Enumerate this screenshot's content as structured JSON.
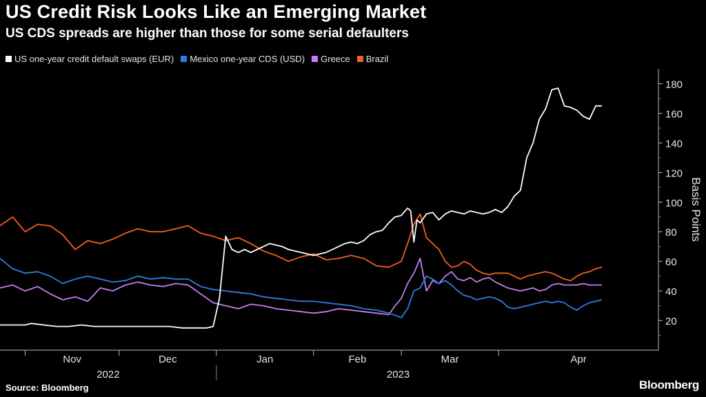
{
  "title": "US Credit Risk Looks Like an Emerging Market",
  "subtitle": "US CDS spreads are higher than those for some serial defaulters",
  "source": "Source: Bloomberg",
  "brand": "Bloomberg",
  "chart_data": {
    "type": "line",
    "ylabel": "Basis Points",
    "ylim": [
      0,
      190
    ],
    "yticks": [
      20,
      40,
      60,
      80,
      100,
      120,
      140,
      160,
      180
    ],
    "grid": false,
    "legend_position": "top-left",
    "x_start": "2022-10-24",
    "x_end": "2023-05-22",
    "x_unit": "days since 2022-10-24",
    "month_ticks": [
      {
        "label": "Nov",
        "day": 8,
        "boundary": 8
      },
      {
        "label": "Dec",
        "day": 38,
        "boundary": 38
      },
      {
        "label": "Jan",
        "day": 69,
        "boundary": 69
      },
      {
        "label": "Feb",
        "day": 100,
        "boundary": 100
      },
      {
        "label": "Mar",
        "day": 128,
        "boundary": 128
      },
      {
        "label": "Apr",
        "day": 159,
        "boundary": 159
      }
    ],
    "year_labels": [
      {
        "label": "2022",
        "start": 0,
        "end": 69
      },
      {
        "label": "2023",
        "start": 69,
        "end": 210
      }
    ],
    "series": [
      {
        "name": "US one-year credit default swaps (EUR)",
        "color": "#ffffff",
        "x": [
          0,
          4,
          8,
          10,
          14,
          18,
          22,
          26,
          30,
          34,
          38,
          42,
          46,
          50,
          54,
          58,
          62,
          64,
          66,
          68,
          70,
          72,
          74,
          76,
          78,
          80,
          82,
          84,
          86,
          88,
          90,
          92,
          94,
          96,
          98,
          100,
          102,
          104,
          106,
          108,
          110,
          112,
          114,
          116,
          118,
          120,
          122,
          124,
          126,
          128,
          130,
          131,
          132,
          133,
          134,
          136,
          138,
          140,
          142,
          144,
          146,
          148,
          150,
          152,
          154,
          156,
          158,
          160,
          162,
          164,
          166,
          168,
          170,
          172,
          174,
          176,
          178,
          180,
          182,
          184,
          186,
          188,
          190,
          192
        ],
        "y": [
          17,
          17,
          17,
          18,
          17,
          16,
          16,
          17,
          16,
          16,
          16,
          16,
          16,
          16,
          16,
          15,
          15,
          15,
          15,
          16,
          35,
          77,
          68,
          66,
          68,
          66,
          68,
          70,
          72,
          71,
          70,
          68,
          67,
          66,
          65,
          64,
          65,
          66,
          68,
          70,
          72,
          73,
          72,
          74,
          78,
          80,
          81,
          86,
          90,
          91,
          96,
          94,
          73,
          88,
          86,
          92,
          93,
          88,
          92,
          94,
          93,
          92,
          94,
          93,
          92,
          93,
          95,
          93,
          97,
          104,
          108,
          130,
          140,
          156,
          163,
          176,
          177,
          165,
          164,
          162,
          158,
          156,
          165,
          165
        ]
      },
      {
        "name": "Mexico one-year CDS (USD)",
        "color": "#2f7de1",
        "x": [
          0,
          4,
          8,
          12,
          16,
          20,
          24,
          28,
          32,
          36,
          40,
          44,
          48,
          52,
          56,
          60,
          64,
          68,
          72,
          76,
          80,
          84,
          88,
          92,
          96,
          100,
          104,
          108,
          112,
          116,
          120,
          124,
          128,
          130,
          132,
          134,
          136,
          138,
          140,
          142,
          144,
          146,
          148,
          150,
          152,
          154,
          156,
          158,
          160,
          162,
          164,
          166,
          168,
          170,
          172,
          174,
          176,
          178,
          180,
          182,
          184,
          186,
          188,
          190,
          192
        ],
        "y": [
          62,
          55,
          52,
          53,
          50,
          45,
          48,
          50,
          48,
          46,
          47,
          50,
          48,
          49,
          48,
          48,
          43,
          41,
          40,
          39,
          38,
          36,
          35,
          34,
          33,
          33,
          32,
          31,
          30,
          28,
          27,
          25,
          22,
          28,
          40,
          42,
          50,
          48,
          45,
          47,
          44,
          40,
          37,
          36,
          34,
          35,
          36,
          35,
          33,
          29,
          28,
          29,
          30,
          31,
          32,
          33,
          32,
          33,
          32,
          29,
          27,
          30,
          32,
          33,
          34
        ]
      },
      {
        "name": "Greece",
        "color": "#c77ef0",
        "x": [
          0,
          4,
          8,
          12,
          16,
          20,
          24,
          28,
          32,
          36,
          40,
          44,
          48,
          52,
          56,
          60,
          64,
          68,
          72,
          76,
          80,
          84,
          88,
          92,
          96,
          100,
          104,
          108,
          112,
          116,
          120,
          124,
          126,
          128,
          130,
          132,
          134,
          136,
          138,
          140,
          142,
          144,
          146,
          148,
          150,
          152,
          154,
          156,
          158,
          160,
          162,
          164,
          166,
          168,
          170,
          172,
          174,
          176,
          178,
          180,
          182,
          184,
          186,
          188,
          190,
          192
        ],
        "y": [
          42,
          44,
          40,
          43,
          38,
          34,
          36,
          33,
          42,
          40,
          44,
          46,
          44,
          43,
          45,
          44,
          38,
          32,
          30,
          28,
          31,
          30,
          28,
          27,
          26,
          25,
          26,
          28,
          27,
          26,
          25,
          24,
          30,
          35,
          45,
          52,
          62,
          40,
          47,
          45,
          50,
          53,
          48,
          47,
          49,
          46,
          48,
          49,
          46,
          44,
          42,
          41,
          40,
          41,
          42,
          40,
          41,
          44,
          45,
          44,
          44,
          44,
          45,
          44,
          44,
          44
        ]
      },
      {
        "name": "Brazil",
        "color": "#f2601f",
        "x": [
          0,
          4,
          8,
          12,
          16,
          20,
          24,
          28,
          32,
          36,
          40,
          44,
          48,
          52,
          56,
          60,
          64,
          68,
          72,
          76,
          80,
          84,
          88,
          92,
          96,
          100,
          104,
          108,
          112,
          116,
          120,
          124,
          128,
          130,
          132,
          134,
          136,
          138,
          140,
          142,
          144,
          146,
          148,
          150,
          152,
          154,
          156,
          158,
          160,
          162,
          164,
          166,
          168,
          170,
          172,
          174,
          176,
          178,
          180,
          182,
          184,
          186,
          188,
          190,
          192
        ],
        "y": [
          84,
          90,
          80,
          85,
          84,
          78,
          68,
          74,
          72,
          75,
          79,
          82,
          80,
          80,
          82,
          84,
          79,
          77,
          74,
          76,
          72,
          67,
          64,
          60,
          63,
          65,
          61,
          62,
          64,
          62,
          57,
          56,
          60,
          72,
          85,
          92,
          76,
          72,
          68,
          60,
          56,
          57,
          60,
          58,
          54,
          52,
          51,
          52,
          52,
          52,
          50,
          48,
          50,
          51,
          52,
          53,
          52,
          50,
          48,
          47,
          50,
          52,
          53,
          55,
          56
        ]
      }
    ]
  }
}
